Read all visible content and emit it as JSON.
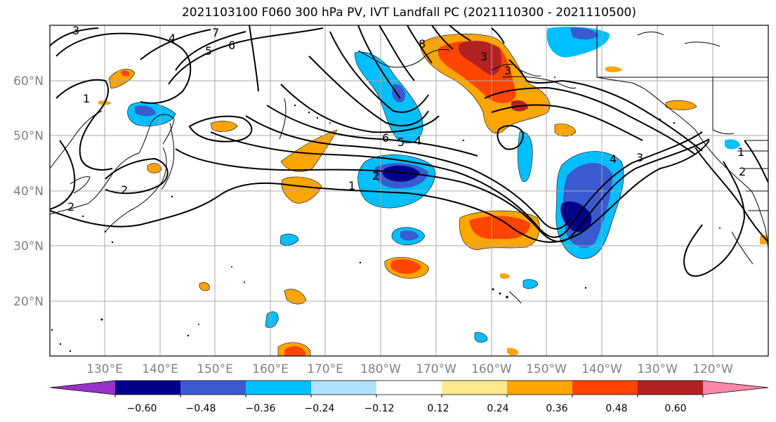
{
  "title": "2021103100 F060 300 hPa PV, IVT Landfall PC (2021110300 - 2021110500)",
  "map": {
    "lon_labels": [
      "130°E",
      "140°E",
      "150°E",
      "160°E",
      "170°E",
      "180°W",
      "170°W",
      "160°W",
      "150°W",
      "140°W",
      "130°W",
      "120°W"
    ],
    "lat_labels": [
      "60°N",
      "50°N",
      "40°N",
      "30°N",
      "20°N"
    ],
    "grid": true,
    "contour_labels": [
      "3",
      "7",
      "4",
      "5",
      "6",
      "1",
      "2",
      "6",
      "5",
      "4",
      "2",
      "1",
      "8",
      "3",
      "3",
      "4",
      "3",
      "1",
      "2",
      "2"
    ]
  },
  "colorbar": {
    "ticks": [
      "−0.60",
      "−0.48",
      "−0.36",
      "−0.24",
      "−0.12",
      "0.12",
      "0.24",
      "0.36",
      "0.48",
      "0.60"
    ],
    "colors": [
      "#9932cc",
      "#00008b",
      "#3a5ad0",
      "#00bfff",
      "#b0e2ff",
      "#ffffff",
      "#ffe98a",
      "#ffa500",
      "#ff4500",
      "#b22222",
      "#ff88aa"
    ],
    "extend": "both"
  }
}
